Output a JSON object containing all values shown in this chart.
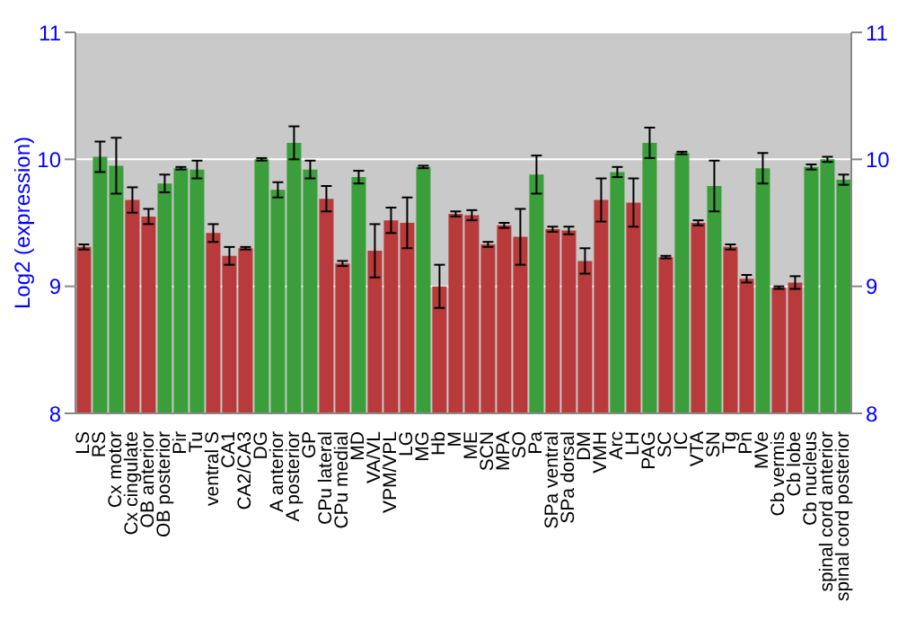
{
  "chart_data": {
    "type": "bar",
    "ylabel": "Log2 (expression)",
    "categories": [
      "LS",
      "RS",
      "Cx motor",
      "Cx cingulate",
      "OB anterior",
      "OB posterior",
      "Pir",
      "Tu",
      "ventral S",
      "CA1",
      "CA2/CA3",
      "DG",
      "A anterior",
      "A posterior",
      "GP",
      "CPu lateral",
      "CPu medial",
      "MD",
      "VA/VL",
      "VPM/VPL",
      "LG",
      "MG",
      "Hb",
      "M",
      "ME",
      "SCN",
      "MPA",
      "SO",
      "Pa",
      "SPa ventral",
      "SPa dorsal",
      "DM",
      "VMH",
      "Arc",
      "LH",
      "PAG",
      "SC",
      "IC",
      "VTA",
      "SN",
      "Tg",
      "Pn",
      "MVe",
      "Cb vermis",
      "Cb lobe",
      "Cb nucleus",
      "spinal cord anterior",
      "spinal cord posterior"
    ],
    "values": [
      9.31,
      10.02,
      9.95,
      9.68,
      9.55,
      9.81,
      9.93,
      9.92,
      9.42,
      9.24,
      9.3,
      10.0,
      9.76,
      10.13,
      9.92,
      9.69,
      9.18,
      9.86,
      9.28,
      9.52,
      9.5,
      9.94,
      9.0,
      9.57,
      9.56,
      9.33,
      9.48,
      9.39,
      9.88,
      9.45,
      9.44,
      9.2,
      9.68,
      9.9,
      9.66,
      10.13,
      9.23,
      10.05,
      9.5,
      9.79,
      9.31,
      9.06,
      9.93,
      8.99,
      9.03,
      9.94,
      10.0,
      9.84
    ],
    "errors": [
      0.02,
      0.12,
      0.22,
      0.1,
      0.06,
      0.07,
      0.01,
      0.07,
      0.07,
      0.07,
      0.01,
      0.01,
      0.06,
      0.13,
      0.07,
      0.1,
      0.02,
      0.05,
      0.21,
      0.1,
      0.2,
      0.01,
      0.17,
      0.02,
      0.04,
      0.02,
      0.02,
      0.22,
      0.15,
      0.02,
      0.03,
      0.1,
      0.17,
      0.04,
      0.19,
      0.12,
      0.01,
      0.01,
      0.02,
      0.2,
      0.02,
      0.03,
      0.12,
      0.01,
      0.05,
      0.02,
      0.02,
      0.04
    ],
    "colors": [
      "#b83a3a",
      "#3a9e3a",
      "#3a9e3a",
      "#b83a3a",
      "#b83a3a",
      "#3a9e3a",
      "#3a9e3a",
      "#3a9e3a",
      "#b83a3a",
      "#b83a3a",
      "#b83a3a",
      "#3a9e3a",
      "#3a9e3a",
      "#3a9e3a",
      "#3a9e3a",
      "#b83a3a",
      "#b83a3a",
      "#3a9e3a",
      "#b83a3a",
      "#b83a3a",
      "#b83a3a",
      "#3a9e3a",
      "#b83a3a",
      "#b83a3a",
      "#b83a3a",
      "#b83a3a",
      "#b83a3a",
      "#b83a3a",
      "#3a9e3a",
      "#b83a3a",
      "#b83a3a",
      "#b83a3a",
      "#b83a3a",
      "#3a9e3a",
      "#b83a3a",
      "#3a9e3a",
      "#b83a3a",
      "#3a9e3a",
      "#b83a3a",
      "#3a9e3a",
      "#b83a3a",
      "#b83a3a",
      "#3a9e3a",
      "#b83a3a",
      "#b83a3a",
      "#3a9e3a",
      "#3a9e3a",
      "#3a9e3a"
    ],
    "ylim": [
      8,
      11
    ],
    "yticks": [
      8,
      9,
      10,
      11
    ],
    "y2lim": [
      8,
      11
    ],
    "y2ticks": [
      8,
      9,
      10,
      11
    ],
    "grid": "y"
  }
}
